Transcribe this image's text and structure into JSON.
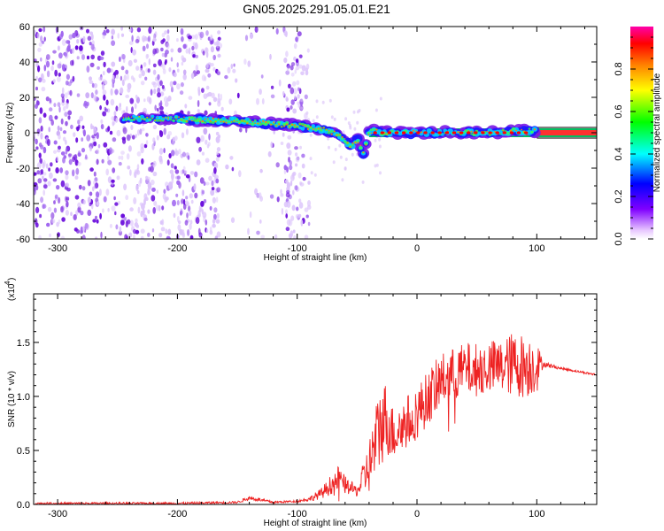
{
  "title": "GN05.2025.291.05.01.E21",
  "chart_data": [
    {
      "type": "heatmap",
      "title": "",
      "xlabel": "Height of straight line (km)",
      "ylabel": "Frequency (Hz)",
      "xlim": [
        -320,
        150
      ],
      "ylim": [
        -60,
        60
      ],
      "xticks": [
        -300,
        -200,
        -100,
        0,
        100
      ],
      "yticks": [
        -60,
        -40,
        -20,
        0,
        20,
        40,
        60
      ],
      "colorbar": {
        "label": "Normalized spectral amplitude",
        "range": [
          0.0,
          1.0
        ],
        "ticks": [
          0.0,
          0.2,
          0.4,
          0.6,
          0.8
        ],
        "colormap": [
          "#ff00ff",
          "#8000ff",
          "#0000ff",
          "#00ffff",
          "#00ff00",
          "#ffff00",
          "#ff8000",
          "#ff0000"
        ]
      },
      "ridge": {
        "x": [
          -245,
          -220,
          -200,
          -180,
          -160,
          -140,
          -120,
          -100,
          -90,
          -80,
          -70,
          -60,
          -55,
          -50,
          -45,
          -40,
          -35,
          -30,
          -20,
          0,
          20,
          40,
          60,
          80,
          100,
          150
        ],
        "y": [
          8,
          8,
          8,
          7,
          7,
          6,
          5,
          4,
          3,
          2,
          0,
          -4,
          -8,
          -3,
          -12,
          1,
          1,
          0,
          0,
          0,
          0,
          0,
          0,
          1,
          1,
          0
        ]
      },
      "noise_region_x": [
        -320,
        -100
      ]
    },
    {
      "type": "line",
      "title": "",
      "xlabel": "Height of straight line (km)",
      "ylabel": "SNR (10 * v/v)",
      "multiplier": "(x10",
      "multiplier_exp": "4",
      "xlim": [
        -320,
        150
      ],
      "ylim": [
        0,
        1.95
      ],
      "xticks": [
        -300,
        -200,
        -100,
        0,
        100
      ],
      "yticks": [
        0.0,
        0.5,
        1.0,
        1.5
      ],
      "series": [
        {
          "color": "#ee2222",
          "x": [
            -320,
            -250,
            -200,
            -150,
            -140,
            -120,
            -100,
            -90,
            -80,
            -70,
            -65,
            -60,
            -50,
            -40,
            -35,
            -30,
            -25,
            -20,
            -10,
            0,
            10,
            20,
            30,
            40,
            50,
            60,
            70,
            80,
            90,
            100,
            105,
            120,
            150
          ],
          "y": [
            0.01,
            0.01,
            0.01,
            0.02,
            0.06,
            0.02,
            0.03,
            0.05,
            0.1,
            0.2,
            0.25,
            0.18,
            0.12,
            0.35,
            0.55,
            0.75,
            0.8,
            0.65,
            0.75,
            0.85,
            1.0,
            1.15,
            1.2,
            1.25,
            1.25,
            1.28,
            1.27,
            1.3,
            1.28,
            1.28,
            1.3,
            1.26,
            1.2
          ],
          "noise_amplitude": [
            0.01,
            0.01,
            0.01,
            0.01,
            0.02,
            0.01,
            0.01,
            0.02,
            0.05,
            0.1,
            0.12,
            0.08,
            0.05,
            0.25,
            0.35,
            0.4,
            0.35,
            0.25,
            0.25,
            0.25,
            0.25,
            0.25,
            0.25,
            0.25,
            0.25,
            0.25,
            0.25,
            0.3,
            0.3,
            0.25,
            0.03,
            0.01,
            0.01
          ]
        }
      ]
    }
  ]
}
